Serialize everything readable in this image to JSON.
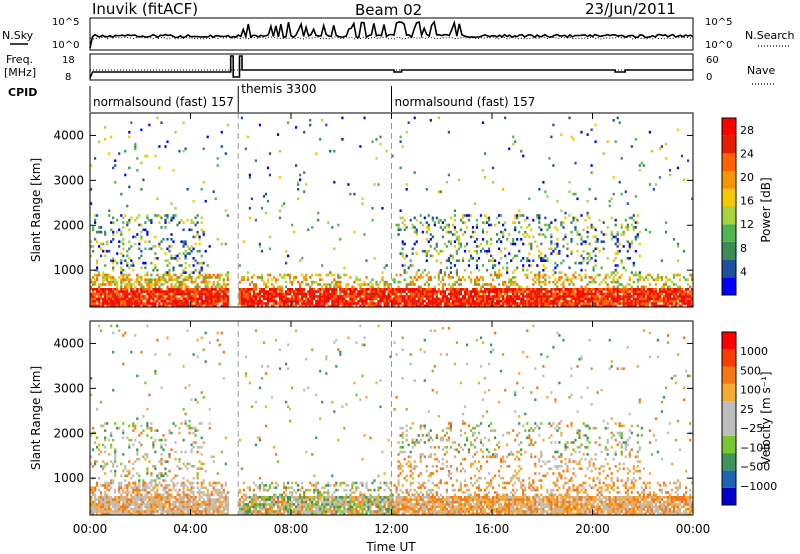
{
  "header": {
    "station": "Inuvik (fitACF)",
    "beam": "Beam 02",
    "date": "23/Jun/2011"
  },
  "panels": {
    "nsky_label": "N.Sky",
    "nsearch_label": "N.Search",
    "freq_label_1": "Freq.",
    "freq_label_2": "[MHz]",
    "nave_label": "Nave",
    "cpid_label": "CPID",
    "left_ticks_noise": [
      "10^5",
      "10^0"
    ],
    "right_ticks_noise": [
      "10^5",
      "10^0"
    ],
    "left_ticks_freq": [
      "18",
      "8"
    ],
    "right_ticks_nave": [
      "60",
      "0"
    ]
  },
  "cpid_segments": [
    {
      "label": "normalsound (fast) 157",
      "start_h": 0.0,
      "end_h": 5.9
    },
    {
      "label": "themis 3300",
      "start_h": 5.9,
      "end_h": 12.0
    },
    {
      "label": "normalsound (fast) 157",
      "start_h": 12.0,
      "end_h": 24.0
    }
  ],
  "colors": {
    "power_scale": [
      "#0000ff",
      "#1e50a0",
      "#3c8c5a",
      "#50b450",
      "#aad23c",
      "#f5c800",
      "#f59600",
      "#ff6400",
      "#e61e00",
      "#ff0000"
    ],
    "velocity_scale": [
      "#0000c8",
      "#1e64b4",
      "#3c965a",
      "#78c832",
      "#bebebe",
      "#bebebe",
      "#f5aa32",
      "#f57814",
      "#ff3c00",
      "#ff0000"
    ]
  },
  "chart_data": [
    {
      "type": "heatmap",
      "name": "power",
      "xlabel": "",
      "ylabel": "Slant Range [km]",
      "x_ticks": [
        "00:00",
        "04:00",
        "08:00",
        "12:00",
        "16:00",
        "20:00",
        "00:00"
      ],
      "y_ticks": [
        "1000",
        "2000",
        "3000",
        "4000"
      ],
      "xlim": [
        0,
        24
      ],
      "ylim": [
        180,
        4500
      ],
      "colorbar": {
        "label": "Power [dB]",
        "ticks": [
          "4",
          "8",
          "12",
          "16",
          "20",
          "24",
          "28"
        ],
        "range": [
          0,
          30
        ]
      }
    },
    {
      "type": "heatmap",
      "name": "velocity",
      "xlabel": "Time UT",
      "ylabel": "Slant Range [km]",
      "x_ticks": [
        "00:00",
        "04:00",
        "08:00",
        "12:00",
        "16:00",
        "20:00",
        "00:00"
      ],
      "y_ticks": [
        "1000",
        "2000",
        "3000",
        "4000"
      ],
      "xlim": [
        0,
        24
      ],
      "ylim": [
        180,
        4500
      ],
      "colorbar": {
        "label": "Velocity [m s⁻¹]",
        "ticks": [
          "1000",
          "500",
          "100",
          "25",
          "−25",
          "−100",
          "−500",
          "−1000"
        ]
      }
    }
  ]
}
